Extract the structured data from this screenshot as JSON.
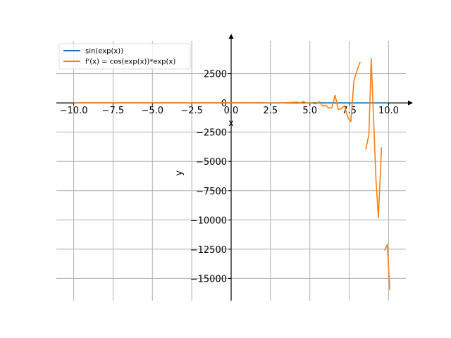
{
  "chart_data": {
    "type": "line",
    "xlabel": "x",
    "ylabel": "y",
    "xlim": [
      -11.1,
      11.1
    ],
    "ylim": [
      -16900,
      5300
    ],
    "grid": true,
    "legend_position": "top-left",
    "x_ticks": [
      {
        "value": -10,
        "label": "−10.0"
      },
      {
        "value": -7.5,
        "label": "−7.5"
      },
      {
        "value": -5,
        "label": "−5.0"
      },
      {
        "value": -2.5,
        "label": "−2.5"
      },
      {
        "value": 0,
        "label": "0.0"
      },
      {
        "value": 2.5,
        "label": "2.5"
      },
      {
        "value": 5,
        "label": "5.0"
      },
      {
        "value": 7.5,
        "label": "7.5"
      },
      {
        "value": 10,
        "label": "10.0"
      }
    ],
    "y_ticks": [
      {
        "value": 2500,
        "label": "2500"
      },
      {
        "value": 0,
        "label": "0"
      },
      {
        "value": -2500,
        "label": "−2500"
      },
      {
        "value": -5000,
        "label": "−5000"
      },
      {
        "value": -7500,
        "label": "−7500"
      },
      {
        "value": -10000,
        "label": "−10000"
      },
      {
        "value": -12500,
        "label": "−12500"
      },
      {
        "value": -15000,
        "label": "−15000"
      }
    ],
    "series": [
      {
        "name": "sin(exp(x))",
        "color": "#1f77b4",
        "segments": [
          [
            [
              -10,
              0
            ],
            [
              -5,
              0
            ],
            [
              0,
              0.84
            ],
            [
              2,
              0.89
            ],
            [
              4,
              -0.96
            ],
            [
              6,
              -0.9
            ],
            [
              8,
              0.5
            ],
            [
              10,
              0
            ]
          ]
        ]
      },
      {
        "name": "f'(x) = cos(exp(x))*exp(x)",
        "color": "#ff7f0e",
        "segments": [
          [
            [
              -10,
              0
            ],
            [
              -5,
              0
            ],
            [
              0,
              1.47
            ],
            [
              2,
              3.5
            ],
            [
              3,
              -20
            ],
            [
              3.5,
              20
            ],
            [
              4.0,
              50
            ],
            [
              4.2,
              60
            ],
            [
              4.4,
              20
            ],
            [
              4.6,
              100
            ],
            [
              4.8,
              -20
            ],
            [
              5.0,
              20
            ],
            [
              5.2,
              -50
            ],
            [
              5.4,
              -80
            ],
            [
              5.6,
              100
            ],
            [
              5.8,
              -250
            ],
            [
              6.0,
              -200
            ],
            [
              6.2,
              -450
            ],
            [
              6.4,
              -400
            ],
            [
              6.6,
              650
            ],
            [
              6.8,
              -550
            ],
            [
              7.0,
              -500
            ],
            [
              7.2,
              -250
            ],
            [
              7.4,
              -1200
            ],
            [
              7.6,
              -1600
            ],
            [
              7.8,
              1900
            ],
            [
              8.0,
              2800
            ],
            [
              8.2,
              3500
            ]
          ],
          [
            [
              8.55,
              -4000
            ],
            [
              8.75,
              -2700
            ],
            [
              8.9,
              3800
            ],
            [
              9.05,
              -1500
            ],
            [
              9.2,
              -6500
            ],
            [
              9.35,
              -9800
            ],
            [
              9.55,
              -3800
            ]
          ],
          [
            [
              9.75,
              -12600
            ],
            [
              9.92,
              -12100
            ],
            [
              10.08,
              -16000
            ]
          ]
        ]
      }
    ]
  }
}
